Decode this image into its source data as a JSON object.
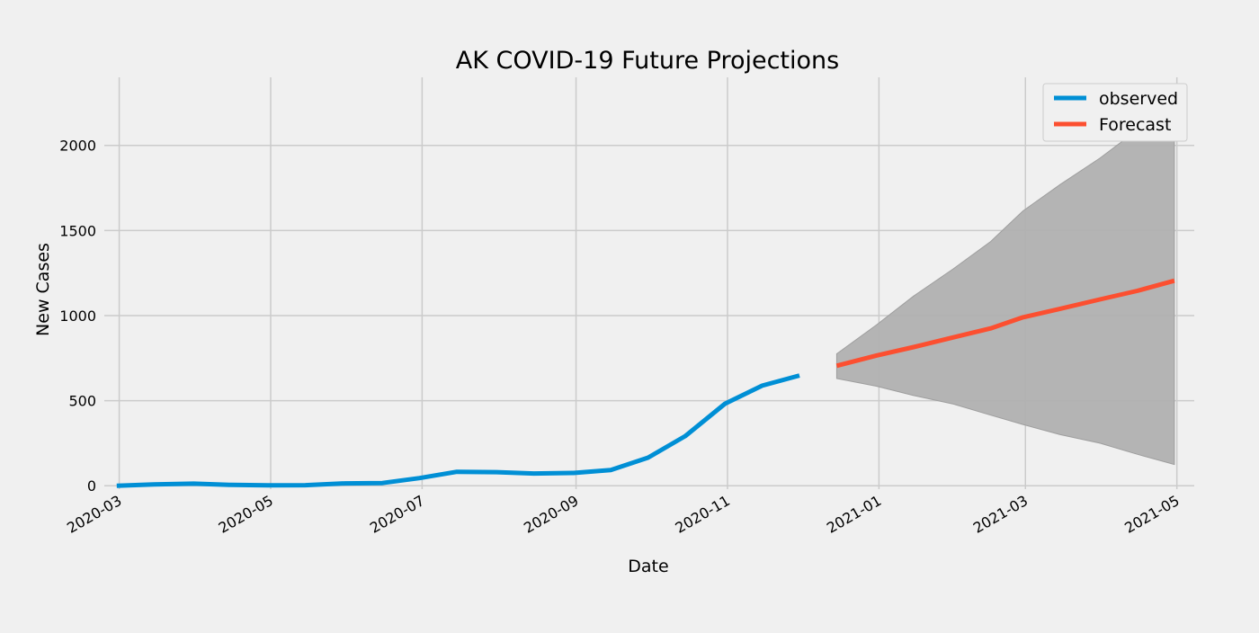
{
  "chart_data": {
    "type": "line",
    "title": "AK COVID-19 Future Projections",
    "xlabel": "Date",
    "ylabel": "New Cases",
    "xlim": [
      "2020-02-24",
      "2021-05-08"
    ],
    "ylim": [
      -20,
      2400
    ],
    "grid": true,
    "legend_position": "top-right",
    "x_ticks": [
      "2020-03-01",
      "2020-05-01",
      "2020-07-01",
      "2020-09-01",
      "2020-11-01",
      "2021-01-01",
      "2021-03-01",
      "2021-05-01"
    ],
    "x_tick_labels": [
      "2020-03",
      "2020-05",
      "2020-07",
      "2020-09",
      "2020-11",
      "2021-01",
      "2021-03",
      "2021-05"
    ],
    "y_ticks": [
      0,
      500,
      1000,
      1500,
      2000
    ],
    "y_tick_labels": [
      "0",
      "500",
      "1000",
      "1500",
      "2000"
    ],
    "series": [
      {
        "name": "observed",
        "color": "#008fd5",
        "x": [
          "2020-02-29",
          "2020-03-15",
          "2020-03-31",
          "2020-04-15",
          "2020-04-30",
          "2020-05-15",
          "2020-05-31",
          "2020-06-15",
          "2020-06-30",
          "2020-07-15",
          "2020-07-31",
          "2020-08-15",
          "2020-08-31",
          "2020-09-15",
          "2020-09-30",
          "2020-10-15",
          "2020-10-31",
          "2020-11-15",
          "2020-11-30"
        ],
        "y": [
          0,
          8,
          12,
          5,
          2,
          3,
          14,
          16,
          45,
          82,
          80,
          72,
          75,
          92,
          165,
          292,
          482,
          588,
          648
        ]
      },
      {
        "name": "Forecast",
        "color": "#fc4f30",
        "x": [
          "2020-12-15",
          "2020-12-31",
          "2021-01-15",
          "2021-01-31",
          "2021-02-15",
          "2021-02-28",
          "2021-03-15",
          "2021-03-31",
          "2021-04-15",
          "2021-04-30"
        ],
        "y": [
          705,
          765,
          815,
          872,
          925,
          990,
          1040,
          1095,
          1145,
          1205
        ]
      }
    ],
    "confidence_band": {
      "color": "#b0b0b0",
      "x": [
        "2020-12-15",
        "2020-12-31",
        "2021-01-15",
        "2021-01-31",
        "2021-02-15",
        "2021-02-28",
        "2021-03-15",
        "2021-03-31",
        "2021-04-15",
        "2021-04-30"
      ],
      "lower": [
        630,
        585,
        530,
        480,
        415,
        360,
        300,
        250,
        185,
        125
      ],
      "upper": [
        775,
        945,
        1115,
        1275,
        1435,
        1615,
        1770,
        1925,
        2090,
        2200
      ]
    }
  }
}
